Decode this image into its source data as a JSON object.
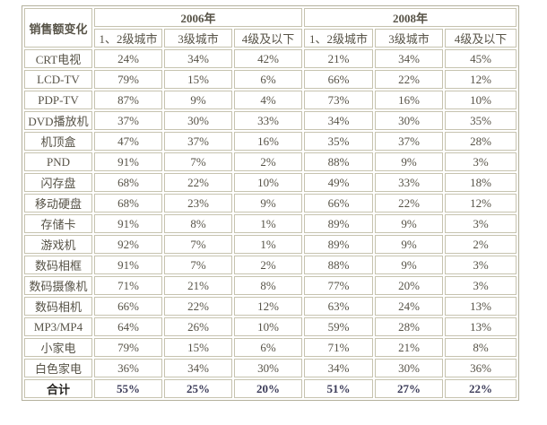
{
  "table": {
    "corner_header": "销售额变化",
    "year_groups": [
      {
        "label": "2006年"
      },
      {
        "label": "2008年"
      }
    ],
    "city_tiers": [
      "1、2级城市",
      "3级城市",
      "4级及以下"
    ],
    "rows": [
      {
        "label": "CRT电视",
        "values": [
          "24%",
          "34%",
          "42%",
          "21%",
          "34%",
          "45%"
        ]
      },
      {
        "label": "LCD-TV",
        "values": [
          "79%",
          "15%",
          "6%",
          "66%",
          "22%",
          "12%"
        ]
      },
      {
        "label": "PDP-TV",
        "values": [
          "87%",
          "9%",
          "4%",
          "73%",
          "16%",
          "10%"
        ]
      },
      {
        "label": "DVD播放机",
        "values": [
          "37%",
          "30%",
          "33%",
          "34%",
          "30%",
          "35%"
        ]
      },
      {
        "label": "机顶盒",
        "values": [
          "47%",
          "37%",
          "16%",
          "35%",
          "37%",
          "28%"
        ]
      },
      {
        "label": "PND",
        "values": [
          "91%",
          "7%",
          "2%",
          "88%",
          "9%",
          "3%"
        ]
      },
      {
        "label": "闪存盘",
        "values": [
          "68%",
          "22%",
          "10%",
          "49%",
          "33%",
          "18%"
        ]
      },
      {
        "label": "移动硬盘",
        "values": [
          "68%",
          "23%",
          "9%",
          "66%",
          "22%",
          "12%"
        ]
      },
      {
        "label": "存储卡",
        "values": [
          "91%",
          "8%",
          "1%",
          "89%",
          "9%",
          "3%"
        ]
      },
      {
        "label": "游戏机",
        "values": [
          "92%",
          "7%",
          "1%",
          "89%",
          "9%",
          "2%"
        ]
      },
      {
        "label": "数码相框",
        "values": [
          "91%",
          "7%",
          "2%",
          "88%",
          "9%",
          "3%"
        ]
      },
      {
        "label": "数码摄像机",
        "values": [
          "71%",
          "21%",
          "8%",
          "77%",
          "20%",
          "3%"
        ]
      },
      {
        "label": "数码相机",
        "values": [
          "66%",
          "22%",
          "12%",
          "63%",
          "24%",
          "13%"
        ]
      },
      {
        "label": "MP3/MP4",
        "values": [
          "64%",
          "26%",
          "10%",
          "59%",
          "28%",
          "13%"
        ]
      },
      {
        "label": "小家电",
        "values": [
          "79%",
          "15%",
          "6%",
          "71%",
          "21%",
          "8%"
        ]
      },
      {
        "label": "白色家电",
        "values": [
          "36%",
          "34%",
          "30%",
          "34%",
          "30%",
          "36%"
        ]
      }
    ],
    "total_row": {
      "label": "合计",
      "values": [
        "55%",
        "25%",
        "20%",
        "51%",
        "27%",
        "22%"
      ]
    }
  },
  "colors": {
    "cell_border": "#c6c3af",
    "outer_border": "#b3b09c",
    "body_text": "#575347",
    "header_text": "#262420",
    "total_value_text": "#3b3b58",
    "background": "#ffffff"
  },
  "chart_data": {
    "type": "table",
    "title": "销售额变化",
    "column_groups": [
      "2006年",
      "2008年"
    ],
    "columns": [
      "1、2级城市(2006年)",
      "3级城市(2006年)",
      "4级及以下(2006年)",
      "1、2级城市(2008年)",
      "3级城市(2008年)",
      "4级及以下(2008年)"
    ],
    "row_labels": [
      "CRT电视",
      "LCD-TV",
      "PDP-TV",
      "DVD播放机",
      "机顶盒",
      "PND",
      "闪存盘",
      "移动硬盘",
      "存储卡",
      "游戏机",
      "数码相框",
      "数码摄像机",
      "数码相机",
      "MP3/MP4",
      "小家电",
      "白色家电",
      "合计"
    ],
    "values_percent": [
      [
        24,
        34,
        42,
        21,
        34,
        45
      ],
      [
        79,
        15,
        6,
        66,
        22,
        12
      ],
      [
        87,
        9,
        4,
        73,
        16,
        10
      ],
      [
        37,
        30,
        33,
        34,
        30,
        35
      ],
      [
        47,
        37,
        16,
        35,
        37,
        28
      ],
      [
        91,
        7,
        2,
        88,
        9,
        3
      ],
      [
        68,
        22,
        10,
        49,
        33,
        18
      ],
      [
        68,
        23,
        9,
        66,
        22,
        12
      ],
      [
        91,
        8,
        1,
        89,
        9,
        3
      ],
      [
        92,
        7,
        1,
        89,
        9,
        2
      ],
      [
        91,
        7,
        2,
        88,
        9,
        3
      ],
      [
        71,
        21,
        8,
        77,
        20,
        3
      ],
      [
        66,
        22,
        12,
        63,
        24,
        13
      ],
      [
        64,
        26,
        10,
        59,
        28,
        13
      ],
      [
        79,
        15,
        6,
        71,
        21,
        8
      ],
      [
        36,
        34,
        30,
        34,
        30,
        36
      ],
      [
        55,
        25,
        20,
        51,
        27,
        22
      ]
    ]
  }
}
